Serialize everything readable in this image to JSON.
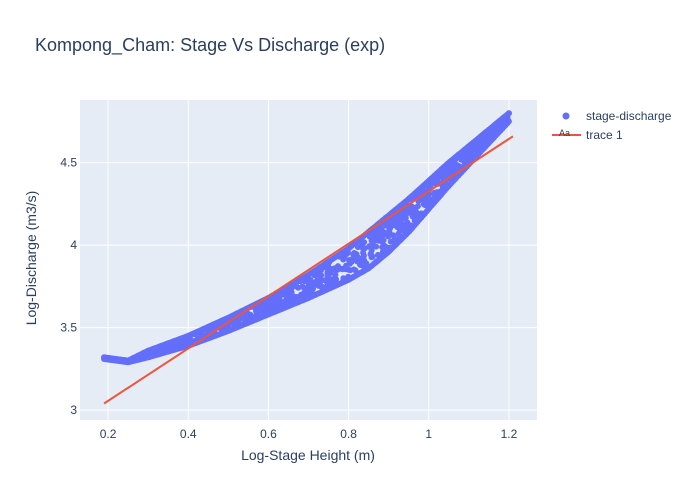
{
  "chart_data": {
    "type": "scatter",
    "title": "Kompong_Cham: Stage Vs Discharge (exp)",
    "xlabel": "Log-Stage Height (m)",
    "ylabel": "Log-Discharge (m3/s)",
    "xlim": [
      0.13,
      1.27
    ],
    "ylim": [
      2.94,
      4.88
    ],
    "x_ticks": [
      0.2,
      0.4,
      0.6,
      0.8,
      1.0,
      1.2
    ],
    "x_tick_labels": [
      "0.2",
      "0.4",
      "0.6",
      "0.8",
      "1",
      "1.2"
    ],
    "y_ticks": [
      3.0,
      3.5,
      4.0,
      4.5
    ],
    "y_tick_labels": [
      "3",
      "3.5",
      "4",
      "4.5"
    ],
    "grid": true,
    "legend_position": "top-right",
    "colors": {
      "background": "#e5ecf6",
      "grid": "#ffffff",
      "scatter": "#636efa",
      "line": "#ef553b"
    },
    "series": [
      {
        "name": "stage-discharge",
        "mode": "markers",
        "color": "#636efa",
        "envelope": {
          "x": [
            0.19,
            0.25,
            0.3,
            0.4,
            0.5,
            0.6,
            0.7,
            0.8,
            0.85,
            0.9,
            0.95,
            1.0,
            1.05,
            1.1,
            1.15,
            1.2
          ],
          "upper": [
            3.32,
            3.3,
            3.36,
            3.45,
            3.56,
            3.68,
            3.82,
            3.98,
            4.08,
            4.18,
            4.28,
            4.39,
            4.5,
            4.6,
            4.7,
            4.8
          ],
          "lower": [
            3.31,
            3.29,
            3.32,
            3.39,
            3.48,
            3.58,
            3.68,
            3.79,
            3.86,
            3.96,
            4.08,
            4.22,
            4.36,
            4.49,
            4.62,
            4.75
          ]
        }
      },
      {
        "name": "trace 1",
        "mode": "lines",
        "color": "#ef553b",
        "x": [
          0.19,
          1.21
        ],
        "y": [
          3.04,
          4.66
        ]
      }
    ]
  }
}
